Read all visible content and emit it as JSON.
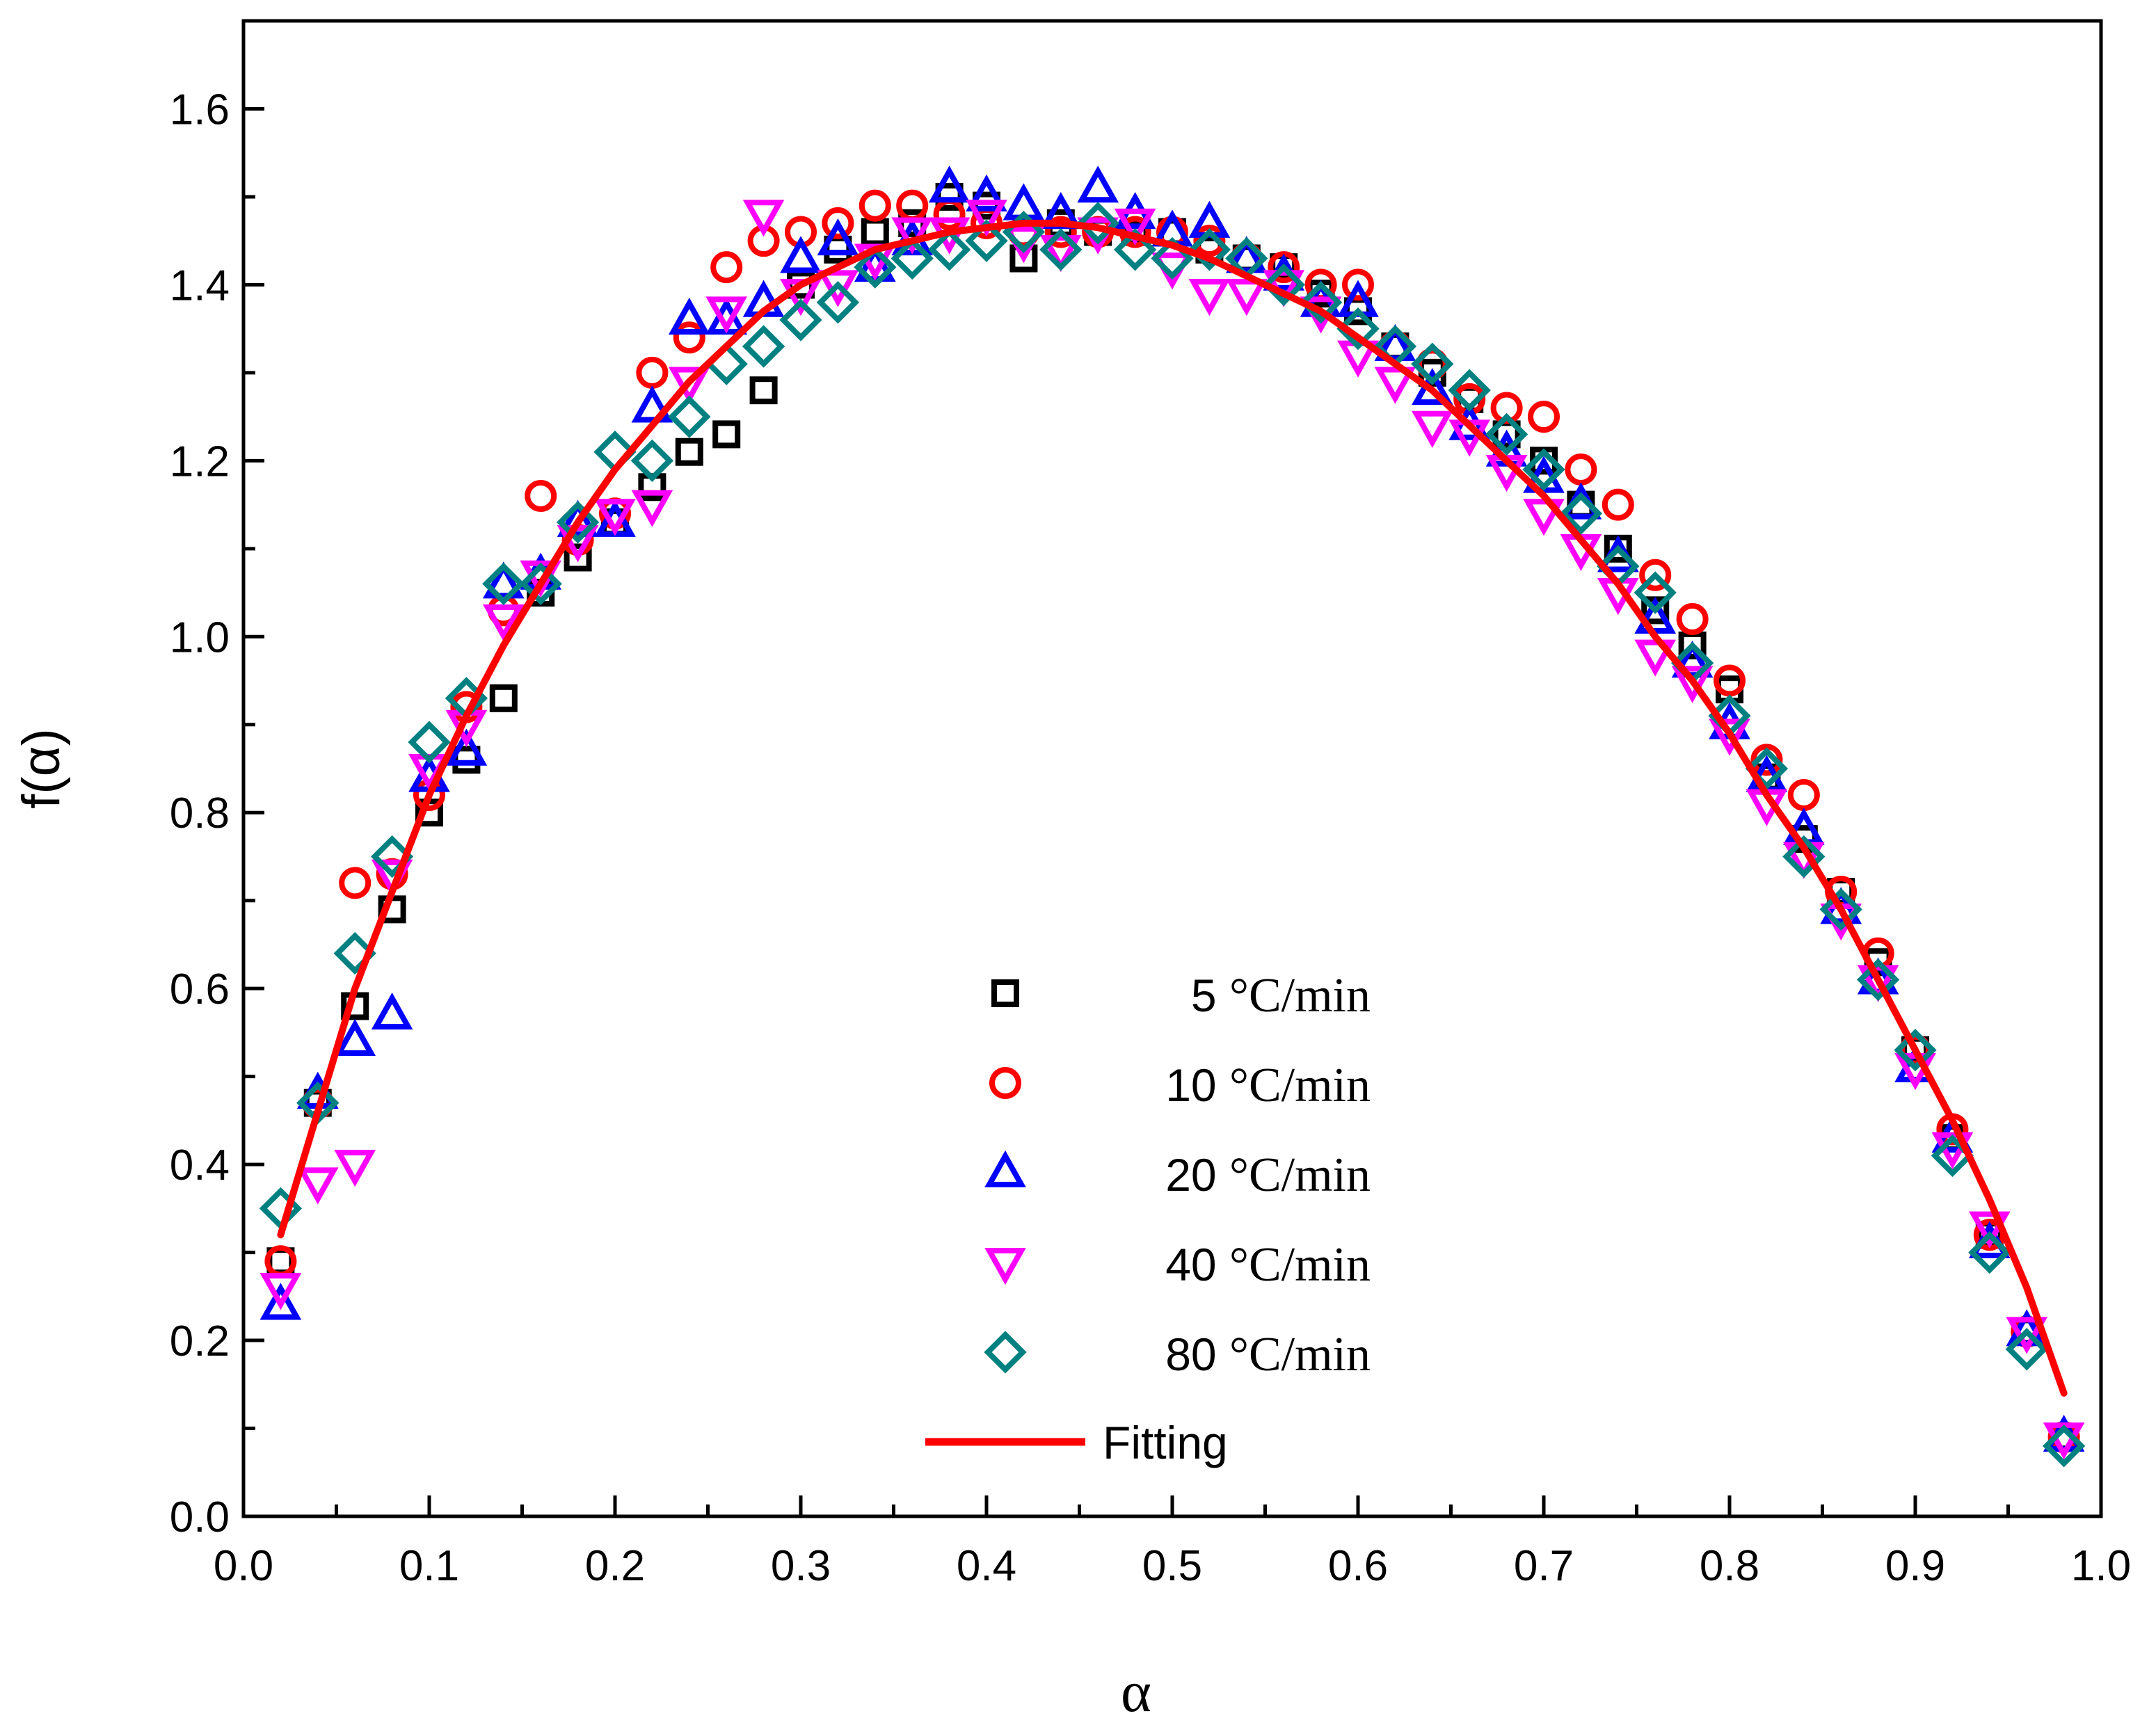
{
  "chart_data": {
    "type": "scatter",
    "title": "",
    "xlabel": "α",
    "ylabel": "f(α)",
    "xlim": [
      0.0,
      1.0
    ],
    "ylim": [
      0.0,
      1.7
    ],
    "x_ticks": [
      0.0,
      0.1,
      0.2,
      0.3,
      0.4,
      0.5,
      0.6,
      0.7,
      0.8,
      0.9,
      1.0
    ],
    "x_tick_labels": [
      "0.0",
      "0.1",
      "0.2",
      "0.3",
      "0.4",
      "0.5",
      "0.6",
      "0.7",
      "0.8",
      "0.9",
      "1.0"
    ],
    "y_ticks": [
      0.0,
      0.2,
      0.4,
      0.6,
      0.8,
      1.0,
      1.2,
      1.4,
      1.6
    ],
    "y_tick_labels": [
      "0.0",
      "0.2",
      "0.4",
      "0.6",
      "0.8",
      "1.0",
      "1.2",
      "1.4",
      "1.6"
    ],
    "grid": false,
    "legend_position": "bottom-center",
    "series": [
      {
        "name": "5 °C/min",
        "legend_num": "5",
        "legend_unit": "°C/min",
        "marker": "square",
        "color": "#000000",
        "x": [
          0.02,
          0.04,
          0.06,
          0.08,
          0.1,
          0.12,
          0.14,
          0.16,
          0.18,
          0.2,
          0.22,
          0.24,
          0.26,
          0.28,
          0.3,
          0.32,
          0.34,
          0.36,
          0.38,
          0.4,
          0.42,
          0.44,
          0.46,
          0.48,
          0.5,
          0.52,
          0.54,
          0.56,
          0.58,
          0.6,
          0.62,
          0.64,
          0.66,
          0.68,
          0.7,
          0.72,
          0.74,
          0.76,
          0.78,
          0.8,
          0.82,
          0.84,
          0.86,
          0.88,
          0.9,
          0.92,
          0.94,
          0.96,
          0.98
        ],
        "y": [
          0.29,
          0.47,
          0.58,
          0.69,
          0.8,
          0.86,
          0.93,
          1.05,
          1.09,
          1.13,
          1.17,
          1.21,
          1.23,
          1.28,
          1.4,
          1.44,
          1.46,
          1.47,
          1.5,
          1.49,
          1.43,
          1.47,
          1.46,
          1.46,
          1.46,
          1.44,
          1.43,
          1.42,
          1.39,
          1.37,
          1.33,
          1.3,
          1.27,
          1.23,
          1.2,
          1.15,
          1.1,
          1.03,
          0.99,
          0.94,
          0.84,
          0.77,
          0.71,
          0.63,
          0.53,
          0.43,
          0.32,
          0.21,
          0.09
        ]
      },
      {
        "name": "10 °C/min",
        "legend_num": "10",
        "legend_unit": "°C/min",
        "marker": "circle",
        "color": "#ff0000",
        "x": [
          0.02,
          0.04,
          0.06,
          0.08,
          0.1,
          0.12,
          0.14,
          0.16,
          0.18,
          0.2,
          0.22,
          0.24,
          0.26,
          0.28,
          0.3,
          0.32,
          0.34,
          0.36,
          0.38,
          0.4,
          0.42,
          0.44,
          0.46,
          0.48,
          0.5,
          0.52,
          0.54,
          0.56,
          0.58,
          0.6,
          0.62,
          0.64,
          0.66,
          0.68,
          0.7,
          0.72,
          0.74,
          0.76,
          0.78,
          0.8,
          0.82,
          0.84,
          0.86,
          0.88,
          0.9,
          0.92,
          0.94,
          0.96,
          0.98
        ],
        "y": [
          0.29,
          0.47,
          0.72,
          0.73,
          0.82,
          0.92,
          1.03,
          1.16,
          1.11,
          1.14,
          1.3,
          1.34,
          1.42,
          1.45,
          1.46,
          1.47,
          1.49,
          1.49,
          1.48,
          1.47,
          1.46,
          1.46,
          1.46,
          1.46,
          1.46,
          1.45,
          1.43,
          1.42,
          1.4,
          1.4,
          1.33,
          1.31,
          1.27,
          1.26,
          1.25,
          1.19,
          1.15,
          1.07,
          1.02,
          0.95,
          0.86,
          0.82,
          0.71,
          0.64,
          0.53,
          0.44,
          0.32,
          0.21,
          0.09
        ]
      },
      {
        "name": "20 °C/min",
        "legend_num": "20",
        "legend_unit": "°C/min",
        "marker": "triangle-up",
        "color": "#0000ff",
        "x": [
          0.02,
          0.04,
          0.06,
          0.08,
          0.1,
          0.12,
          0.14,
          0.16,
          0.18,
          0.2,
          0.22,
          0.24,
          0.26,
          0.28,
          0.3,
          0.32,
          0.34,
          0.36,
          0.38,
          0.4,
          0.42,
          0.44,
          0.46,
          0.48,
          0.5,
          0.52,
          0.54,
          0.56,
          0.58,
          0.6,
          0.62,
          0.64,
          0.66,
          0.68,
          0.7,
          0.72,
          0.74,
          0.76,
          0.78,
          0.8,
          0.82,
          0.84,
          0.86,
          0.88,
          0.9,
          0.92,
          0.94,
          0.96,
          0.98
        ],
        "y": [
          0.24,
          0.48,
          0.54,
          0.57,
          0.84,
          0.87,
          1.06,
          1.07,
          1.13,
          1.13,
          1.26,
          1.36,
          1.36,
          1.38,
          1.43,
          1.45,
          1.42,
          1.45,
          1.51,
          1.5,
          1.49,
          1.48,
          1.51,
          1.48,
          1.46,
          1.47,
          1.43,
          1.41,
          1.38,
          1.38,
          1.33,
          1.28,
          1.24,
          1.21,
          1.18,
          1.15,
          1.09,
          1.02,
          0.97,
          0.9,
          0.84,
          0.78,
          0.69,
          0.61,
          0.51,
          0.43,
          0.31,
          0.21,
          0.09
        ]
      },
      {
        "name": "40 °C/min",
        "legend_num": "40",
        "legend_unit": "°C/min",
        "marker": "triangle-down",
        "color": "#ff00ff",
        "x": [
          0.02,
          0.04,
          0.06,
          0.08,
          0.1,
          0.12,
          0.14,
          0.16,
          0.18,
          0.2,
          0.22,
          0.24,
          0.26,
          0.28,
          0.3,
          0.32,
          0.34,
          0.36,
          0.38,
          0.4,
          0.42,
          0.44,
          0.46,
          0.48,
          0.5,
          0.52,
          0.54,
          0.56,
          0.58,
          0.6,
          0.62,
          0.64,
          0.66,
          0.68,
          0.7,
          0.72,
          0.74,
          0.76,
          0.78,
          0.8,
          0.82,
          0.84,
          0.86,
          0.88,
          0.9,
          0.92,
          0.94,
          0.96,
          0.98
        ],
        "y": [
          0.26,
          0.38,
          0.4,
          0.73,
          0.85,
          0.9,
          1.02,
          1.07,
          1.11,
          1.14,
          1.15,
          1.29,
          1.37,
          1.48,
          1.39,
          1.4,
          1.43,
          1.46,
          1.46,
          1.48,
          1.45,
          1.44,
          1.46,
          1.47,
          1.42,
          1.39,
          1.39,
          1.4,
          1.37,
          1.32,
          1.29,
          1.24,
          1.23,
          1.19,
          1.14,
          1.1,
          1.05,
          0.98,
          0.95,
          0.89,
          0.81,
          0.75,
          0.68,
          0.61,
          0.51,
          0.42,
          0.33,
          0.21,
          0.09
        ]
      },
      {
        "name": "80 °C/min",
        "legend_num": "80",
        "legend_unit": "°C/min",
        "marker": "diamond",
        "color": "#008080",
        "x": [
          0.02,
          0.04,
          0.06,
          0.08,
          0.1,
          0.12,
          0.14,
          0.16,
          0.18,
          0.2,
          0.22,
          0.24,
          0.26,
          0.28,
          0.3,
          0.32,
          0.34,
          0.36,
          0.38,
          0.4,
          0.42,
          0.44,
          0.46,
          0.48,
          0.5,
          0.52,
          0.54,
          0.56,
          0.58,
          0.6,
          0.62,
          0.64,
          0.66,
          0.68,
          0.7,
          0.72,
          0.74,
          0.76,
          0.78,
          0.8,
          0.82,
          0.84,
          0.86,
          0.88,
          0.9,
          0.92,
          0.94,
          0.96,
          0.98
        ],
        "y": [
          0.35,
          0.47,
          0.64,
          0.75,
          0.88,
          0.93,
          1.06,
          1.06,
          1.13,
          1.21,
          1.2,
          1.25,
          1.31,
          1.33,
          1.36,
          1.38,
          1.42,
          1.43,
          1.44,
          1.45,
          1.46,
          1.44,
          1.47,
          1.44,
          1.43,
          1.44,
          1.43,
          1.4,
          1.38,
          1.35,
          1.33,
          1.31,
          1.28,
          1.23,
          1.19,
          1.14,
          1.08,
          1.05,
          0.97,
          0.91,
          0.85,
          0.75,
          0.69,
          0.61,
          0.53,
          0.41,
          0.3,
          0.19,
          0.08
        ]
      }
    ],
    "fit": {
      "name": "Fitting",
      "color": "#ff0000",
      "x": [
        0.02,
        0.04,
        0.06,
        0.08,
        0.1,
        0.12,
        0.14,
        0.16,
        0.18,
        0.2,
        0.22,
        0.24,
        0.26,
        0.28,
        0.3,
        0.32,
        0.34,
        0.36,
        0.38,
        0.4,
        0.42,
        0.44,
        0.46,
        0.48,
        0.5,
        0.52,
        0.54,
        0.56,
        0.58,
        0.6,
        0.62,
        0.64,
        0.66,
        0.68,
        0.7,
        0.72,
        0.74,
        0.76,
        0.78,
        0.8,
        0.82,
        0.84,
        0.86,
        0.88,
        0.9,
        0.92,
        0.94,
        0.96,
        0.98
      ],
      "y": [
        0.32,
        0.46,
        0.6,
        0.71,
        0.82,
        0.91,
        0.99,
        1.06,
        1.13,
        1.19,
        1.24,
        1.29,
        1.33,
        1.37,
        1.4,
        1.42,
        1.44,
        1.45,
        1.46,
        1.465,
        1.47,
        1.47,
        1.465,
        1.455,
        1.445,
        1.43,
        1.41,
        1.39,
        1.37,
        1.34,
        1.31,
        1.28,
        1.24,
        1.2,
        1.16,
        1.11,
        1.06,
        1.0,
        0.95,
        0.89,
        0.82,
        0.76,
        0.69,
        0.61,
        0.53,
        0.45,
        0.36,
        0.26,
        0.14
      ]
    }
  }
}
